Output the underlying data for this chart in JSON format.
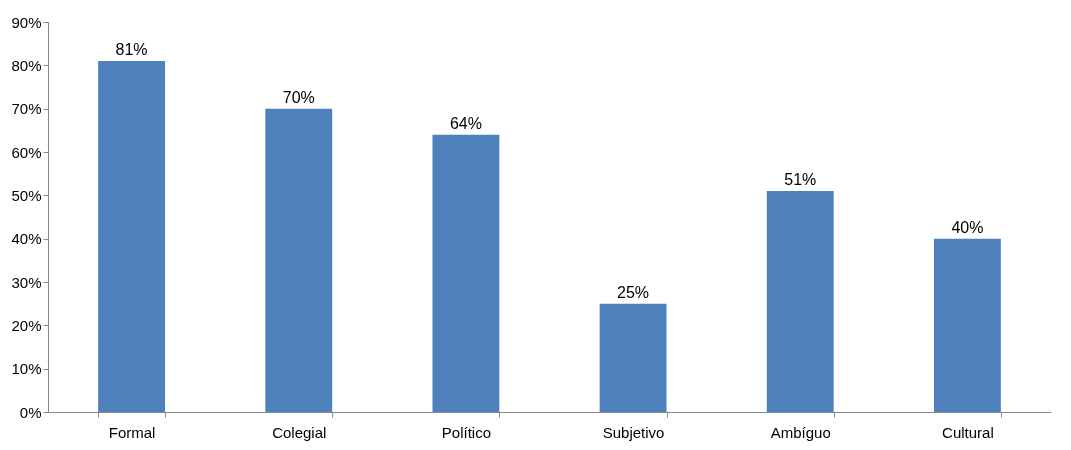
{
  "chart_data": {
    "type": "bar",
    "categories": [
      "Formal",
      "Colegial",
      "Político",
      "Subjetivo",
      "Ambíguo",
      "Cultural"
    ],
    "values": [
      81,
      70,
      64,
      25,
      51,
      40
    ],
    "value_labels": [
      "81%",
      "70%",
      "64%",
      "25%",
      "51%",
      "40%"
    ],
    "color": "#4f81bd",
    "ylim": [
      0,
      90
    ],
    "yticks": [
      {
        "value": 0,
        "label": "0%"
      },
      {
        "value": 10,
        "label": "10%"
      },
      {
        "value": 20,
        "label": "20%"
      },
      {
        "value": 30,
        "label": "30%"
      },
      {
        "value": 40,
        "label": "40%"
      },
      {
        "value": 50,
        "label": "50%"
      },
      {
        "value": 60,
        "label": "60%"
      },
      {
        "value": 70,
        "label": "70%"
      },
      {
        "value": 80,
        "label": "80%"
      },
      {
        "value": 90,
        "label": "90%"
      }
    ],
    "grid": false
  }
}
